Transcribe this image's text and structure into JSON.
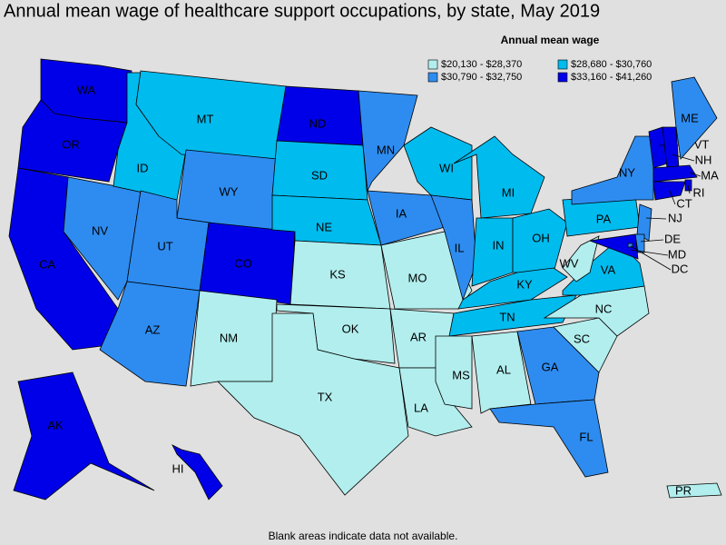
{
  "title": "Annual mean wage of healthcare support occupations, by state, May 2019",
  "legend": {
    "title": "Annual mean wage",
    "items": [
      {
        "label": "$20,130 - $28,370",
        "color": "#b2eeee"
      },
      {
        "label": "$28,680 - $30,760",
        "color": "#00bbee"
      },
      {
        "label": "$30,790 - $32,750",
        "color": "#2e8cf0"
      },
      {
        "label": "$33,160 - $41,260",
        "color": "#0000e8"
      }
    ]
  },
  "states": [
    {
      "label": "WA",
      "color": "#0000e8"
    },
    {
      "label": "OR",
      "color": "#0000e8"
    },
    {
      "label": "CA",
      "color": "#0000e8"
    },
    {
      "label": "NV",
      "color": "#2e8cf0"
    },
    {
      "label": "ID",
      "color": "#00bbee"
    },
    {
      "label": "MT",
      "color": "#00bbee"
    },
    {
      "label": "WY",
      "color": "#2e8cf0"
    },
    {
      "label": "UT",
      "color": "#2e8cf0"
    },
    {
      "label": "AZ",
      "color": "#2e8cf0"
    },
    {
      "label": "CO",
      "color": "#0000e8"
    },
    {
      "label": "NM",
      "color": "#b2eeee"
    },
    {
      "label": "ND",
      "color": "#0000e8"
    },
    {
      "label": "SD",
      "color": "#00bbee"
    },
    {
      "label": "NE",
      "color": "#00bbee"
    },
    {
      "label": "KS",
      "color": "#b2eeee"
    },
    {
      "label": "OK",
      "color": "#b2eeee"
    },
    {
      "label": "TX",
      "color": "#b2eeee"
    },
    {
      "label": "MN",
      "color": "#2e8cf0"
    },
    {
      "label": "IA",
      "color": "#2e8cf0"
    },
    {
      "label": "MO",
      "color": "#b2eeee"
    },
    {
      "label": "AR",
      "color": "#b2eeee"
    },
    {
      "label": "LA",
      "color": "#b2eeee"
    },
    {
      "label": "WI",
      "color": "#00bbee"
    },
    {
      "label": "IL",
      "color": "#2e8cf0"
    },
    {
      "label": "MI",
      "color": "#00bbee"
    },
    {
      "label": "IN",
      "color": "#00bbee"
    },
    {
      "label": "OH",
      "color": "#00bbee"
    },
    {
      "label": "KY",
      "color": "#00bbee"
    },
    {
      "label": "TN",
      "color": "#00bbee"
    },
    {
      "label": "MS",
      "color": "#b2eeee"
    },
    {
      "label": "AL",
      "color": "#b2eeee"
    },
    {
      "label": "GA",
      "color": "#2e8cf0"
    },
    {
      "label": "FL",
      "color": "#2e8cf0"
    },
    {
      "label": "SC",
      "color": "#b2eeee"
    },
    {
      "label": "NC",
      "color": "#b2eeee"
    },
    {
      "label": "VA",
      "color": "#00bbee"
    },
    {
      "label": "WV",
      "color": "#b2eeee"
    },
    {
      "label": "PA",
      "color": "#00bbee"
    },
    {
      "label": "NY",
      "color": "#2e8cf0"
    },
    {
      "label": "VT",
      "color": "#0000e8"
    },
    {
      "label": "NH",
      "color": "#0000e8"
    },
    {
      "label": "ME",
      "color": "#2e8cf0"
    },
    {
      "label": "MA",
      "color": "#0000e8"
    },
    {
      "label": "RI",
      "color": "#0000e8"
    },
    {
      "label": "CT",
      "color": "#0000e8"
    },
    {
      "label": "NJ",
      "color": "#2e8cf0"
    },
    {
      "label": "DE",
      "color": "#2e8cf0"
    },
    {
      "label": "MD",
      "color": "#0000e8"
    },
    {
      "label": "DC",
      "color": "#2e8cf0"
    },
    {
      "label": "AK",
      "color": "#0000e8"
    },
    {
      "label": "HI",
      "color": "#0000e8"
    },
    {
      "label": "PR",
      "color": "#b2eeee"
    }
  ],
  "footnote": "Blank areas indicate data not available."
}
